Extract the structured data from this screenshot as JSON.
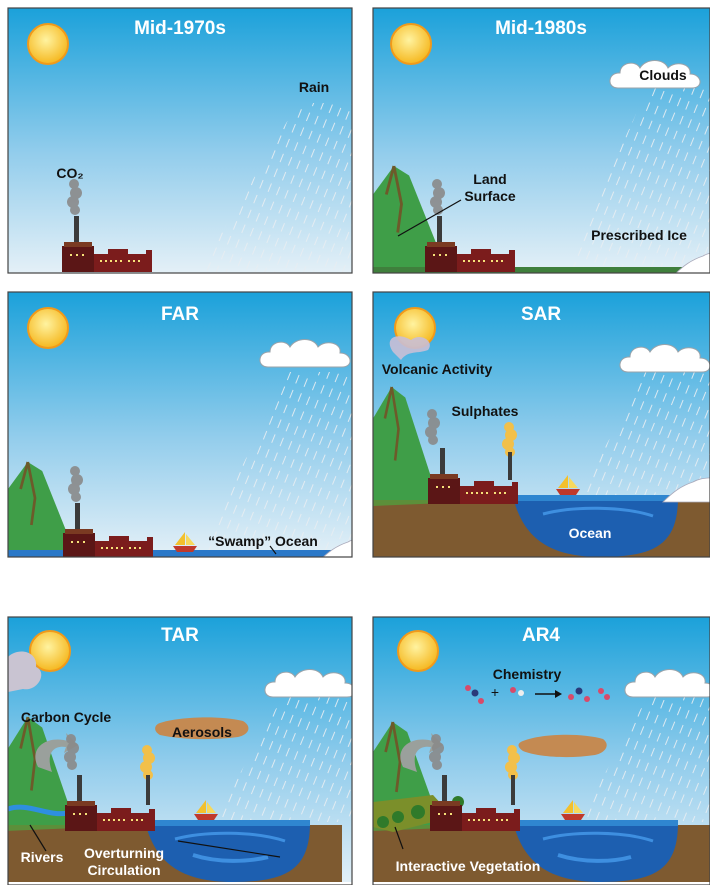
{
  "panels": [
    {
      "title": "Mid-1970s",
      "labels": [
        "Rain",
        "CO₂"
      ]
    },
    {
      "title": "Mid-1980s",
      "labels": [
        "Clouds",
        [
          "Land",
          "Surface"
        ],
        "Prescribed Ice"
      ]
    },
    {
      "title": "FAR",
      "labels": [
        "“Swamp” Ocean"
      ]
    },
    {
      "title": "SAR",
      "labels": [
        "Volcanic Activity",
        "Sulphates",
        "Ocean"
      ]
    },
    {
      "title": "TAR",
      "labels": [
        "Carbon Cycle",
        "Aerosols",
        "Rivers",
        [
          "Overturning",
          "Circulation"
        ]
      ]
    },
    {
      "title": "AR4",
      "labels": [
        "Chemistry",
        "Interactive Vegetation"
      ]
    }
  ]
}
